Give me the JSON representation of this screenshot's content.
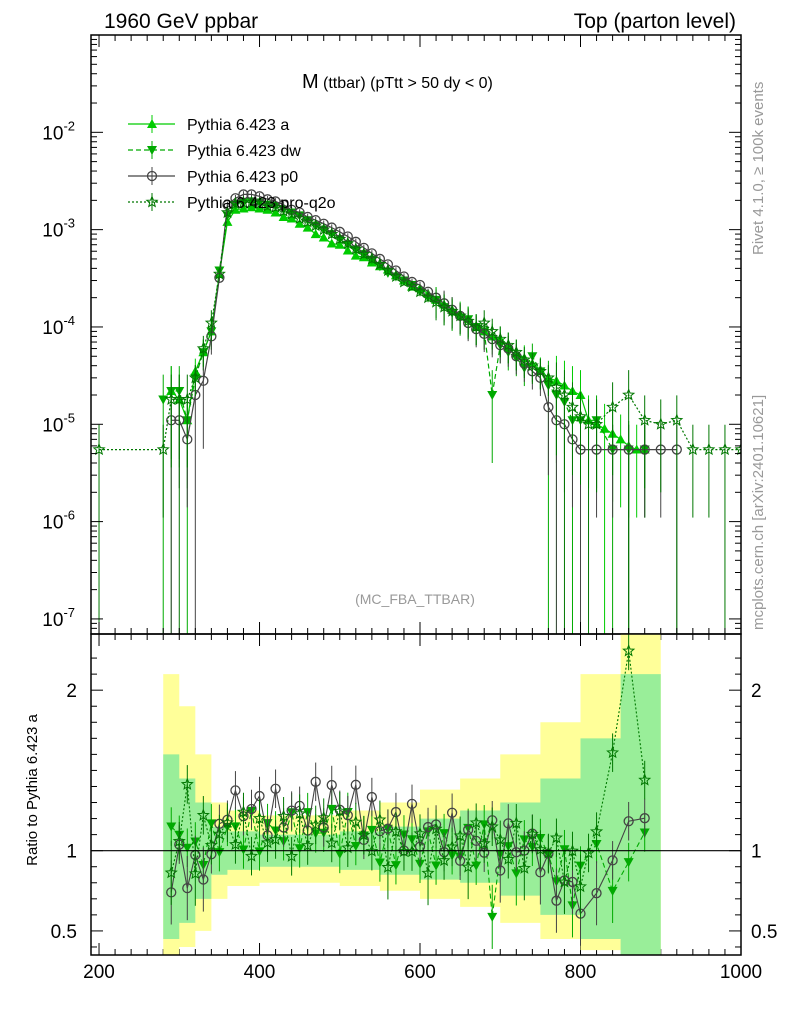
{
  "header": {
    "left": "1960 GeV ppbar",
    "right": "Top (parton level)"
  },
  "side_labels": {
    "rivet": "Rivet 4.1.0, ≥ 100k events",
    "mcplots": "mcplots.cern.ch [arXiv:2401.10621]"
  },
  "chart_data": {
    "type": "line",
    "title_main": "M",
    "title_rest": "(ttbar) (pTtt > 50 dy < 0)",
    "watermark": "(MC_FBA_TTBAR)",
    "xlabel": "",
    "ylabel_ratio": "Ratio to Pythia 6.423 a",
    "xlim": [
      190,
      1000
    ],
    "ylim_main": [
      7e-08,
      0.1
    ],
    "ylim_ratio": [
      0.35,
      2.35
    ],
    "y_scale_main": "log",
    "x_ticks": [
      "200",
      "400",
      "600",
      "800",
      "1000"
    ],
    "y_ticks_main": [
      "10^-2",
      "10^-3",
      "10^-4",
      "10^-5",
      "10^-6",
      "10^-7"
    ],
    "y_ticks_ratio": [
      "0.5",
      "1",
      "2"
    ],
    "legend": [
      {
        "label": "Pythia 6.423 a",
        "color": "#00cc00",
        "marker": "triangle-up",
        "style": "solid"
      },
      {
        "label": "Pythia 6.423 dw",
        "color": "#00aa00",
        "marker": "triangle-down",
        "style": "dashed"
      },
      {
        "label": "Pythia 6.423 p0",
        "color": "#444444",
        "marker": "circle-open",
        "style": "solid"
      },
      {
        "label": "Pythia 6.423 pro-q2o",
        "color": "#007700",
        "marker": "star-open",
        "style": "dotted"
      }
    ],
    "series": [
      {
        "name": "Pythia 6.423 a",
        "x": [
          290,
          300,
          310,
          320,
          330,
          340,
          350,
          360,
          370,
          380,
          390,
          400,
          410,
          420,
          430,
          440,
          450,
          460,
          470,
          480,
          490,
          500,
          510,
          520,
          530,
          540,
          550,
          560,
          570,
          580,
          590,
          600,
          610,
          620,
          630,
          640,
          650,
          660,
          670,
          680,
          690,
          700,
          710,
          720,
          730,
          740,
          750,
          760,
          770,
          780,
          790,
          800,
          810,
          820,
          830,
          840,
          850,
          860,
          870,
          880
        ],
        "y": [
          2.2e-05,
          1.8e-05,
          1.1e-05,
          3.5e-05,
          5.5e-05,
          9e-05,
          0.00035,
          0.0012,
          0.0016,
          0.00165,
          0.0017,
          0.00165,
          0.0016,
          0.0015,
          0.00135,
          0.0013,
          0.00115,
          0.00105,
          0.0009,
          0.00083,
          0.00072,
          0.0007,
          0.00061,
          0.00054,
          0.00052,
          0.00046,
          0.00042,
          0.00039,
          0.00034,
          0.0003,
          0.00026,
          0.00025,
          0.00022,
          0.00019,
          0.00017,
          0.00015,
          0.000135,
          0.00012,
          0.0001,
          9e-05,
          8e-05,
          7.5e-05,
          6.5e-05,
          5.5e-05,
          4.8e-05,
          4.2e-05,
          3.6e-05,
          3e-05,
          2.8e-05,
          2.5e-05,
          2.2e-05,
          2e-05,
          1.1e-05,
          1e-05,
          9e-06,
          8e-06,
          7e-06,
          6e-06,
          5.5e-06,
          5.5e-06
        ]
      },
      {
        "name": "Pythia 6.423 dw",
        "x": [
          280,
          290,
          300,
          310,
          320,
          330,
          340,
          350,
          360,
          370,
          380,
          390,
          400,
          410,
          420,
          430,
          440,
          450,
          460,
          470,
          480,
          490,
          500,
          510,
          520,
          530,
          540,
          550,
          560,
          570,
          580,
          590,
          600,
          610,
          620,
          630,
          640,
          650,
          660,
          670,
          680,
          690,
          700,
          710,
          720,
          730,
          740,
          750,
          760,
          770,
          780,
          790,
          800,
          820,
          840,
          860,
          880
        ],
        "y": [
          1.8e-05,
          2.2e-05,
          2.2e-05,
          1.1e-05,
          3e-05,
          5.5e-05,
          9e-05,
          0.00038,
          0.0014,
          0.0018,
          0.0019,
          0.00195,
          0.0019,
          0.0018,
          0.00175,
          0.0016,
          0.0015,
          0.0014,
          0.00125,
          0.0011,
          0.001,
          0.0009,
          0.0008,
          0.0007,
          0.00062,
          0.00056,
          0.00049,
          0.00042,
          0.00036,
          0.00033,
          0.0003,
          0.00027,
          0.00023,
          0.0002,
          0.00019,
          0.00016,
          0.00014,
          0.000125,
          0.00012,
          0.0001,
          9e-05,
          2e-05,
          6.5e-05,
          5.5e-05,
          4.8e-05,
          3.8e-05,
          5e-05,
          3.5e-05,
          2.5e-05,
          2e-05,
          1.7e-05,
          1.1e-05,
          1.1e-05,
          1.1e-05,
          5.5e-06,
          5.5e-06,
          5.5e-06
        ]
      },
      {
        "name": "Pythia 6.423 p0",
        "x": [
          290,
          300,
          310,
          320,
          330,
          340,
          350,
          360,
          370,
          380,
          390,
          400,
          410,
          420,
          430,
          440,
          450,
          460,
          470,
          480,
          490,
          500,
          510,
          520,
          530,
          540,
          550,
          560,
          570,
          580,
          590,
          600,
          610,
          620,
          630,
          640,
          650,
          660,
          670,
          680,
          690,
          700,
          710,
          720,
          730,
          740,
          750,
          760,
          770,
          780,
          790,
          800,
          820,
          840,
          860,
          880,
          900,
          920
        ],
        "y": [
          1.1e-05,
          1.1e-05,
          7e-06,
          2e-05,
          2.8e-05,
          8e-05,
          0.00032,
          0.0018,
          0.0021,
          0.0023,
          0.0023,
          0.0022,
          0.00205,
          0.00195,
          0.0018,
          0.0016,
          0.0015,
          0.00135,
          0.00125,
          0.00115,
          0.00105,
          0.00095,
          0.00085,
          0.00075,
          0.00065,
          0.00057,
          0.0005,
          0.00044,
          0.00038,
          0.00033,
          0.00029,
          0.00027,
          0.00023,
          0.0002,
          0.000175,
          0.00015,
          0.00013,
          0.00011,
          9.5e-05,
          8.5e-05,
          7.5e-05,
          6.5e-05,
          6e-05,
          5e-05,
          4.2e-05,
          3.5e-05,
          3e-05,
          1.5e-05,
          1.1e-05,
          1e-05,
          7e-06,
          5.5e-06,
          5.5e-06,
          5.5e-06,
          5.5e-06,
          5.5e-06,
          5.5e-06,
          5.5e-06
        ]
      },
      {
        "name": "Pythia 6.423 pro-q2o",
        "x": [
          200,
          280,
          290,
          300,
          310,
          320,
          330,
          340,
          350,
          360,
          370,
          380,
          390,
          400,
          410,
          420,
          430,
          440,
          450,
          460,
          470,
          480,
          490,
          500,
          510,
          520,
          530,
          540,
          550,
          560,
          570,
          580,
          590,
          600,
          610,
          620,
          630,
          640,
          650,
          660,
          670,
          680,
          690,
          700,
          710,
          720,
          730,
          740,
          750,
          760,
          770,
          780,
          790,
          800,
          810,
          820,
          840,
          860,
          880,
          900,
          920,
          940,
          960,
          980,
          1000
        ],
        "y": [
          5.5e-06,
          5.5e-06,
          1.8e-05,
          1.8e-05,
          1.8e-05,
          3e-05,
          6e-05,
          0.00011,
          0.00035,
          0.0015,
          0.00185,
          0.0019,
          0.0019,
          0.00185,
          0.00175,
          0.0017,
          0.00155,
          0.00145,
          0.0013,
          0.0012,
          0.0011,
          0.001,
          0.0009,
          0.0008,
          0.00072,
          0.00063,
          0.00056,
          0.0005,
          0.00044,
          0.00038,
          0.00033,
          0.00029,
          0.00026,
          0.00023,
          0.0002,
          0.00018,
          0.00016,
          0.000145,
          0.00013,
          0.000115,
          0.0001,
          0.00011,
          9e-05,
          7.5e-05,
          6.5e-05,
          5.5e-05,
          4.6e-05,
          4e-05,
          3.5e-05,
          3e-05,
          2.4e-05,
          2e-05,
          1.5e-05,
          1.2e-05,
          1e-05,
          1e-05,
          1.5e-05,
          2e-05,
          1.1e-05,
          1e-05,
          1.1e-05,
          5.5e-06,
          5.5e-06,
          5.5e-06,
          5.5e-06
        ]
      }
    ],
    "ratio_band": {
      "x": [
        280,
        300,
        320,
        340,
        360,
        400,
        450,
        500,
        550,
        600,
        650,
        700,
        750,
        800,
        850,
        900
      ],
      "green_lo": [
        0.45,
        0.55,
        0.7,
        0.85,
        0.88,
        0.9,
        0.9,
        0.88,
        0.85,
        0.82,
        0.8,
        0.72,
        0.6,
        0.45,
        0.35,
        0.35
      ],
      "green_hi": [
        1.6,
        1.45,
        1.3,
        1.15,
        1.12,
        1.1,
        1.1,
        1.12,
        1.15,
        1.2,
        1.25,
        1.3,
        1.45,
        1.7,
        2.1,
        2.2
      ],
      "yellow_lo": [
        0.35,
        0.4,
        0.5,
        0.7,
        0.78,
        0.8,
        0.8,
        0.78,
        0.75,
        0.7,
        0.65,
        0.55,
        0.45,
        0.38,
        0.35,
        0.35
      ],
      "yellow_hi": [
        2.1,
        1.9,
        1.6,
        1.3,
        1.25,
        1.22,
        1.22,
        1.25,
        1.3,
        1.38,
        1.45,
        1.6,
        1.8,
        2.1,
        2.35,
        2.35
      ]
    }
  }
}
